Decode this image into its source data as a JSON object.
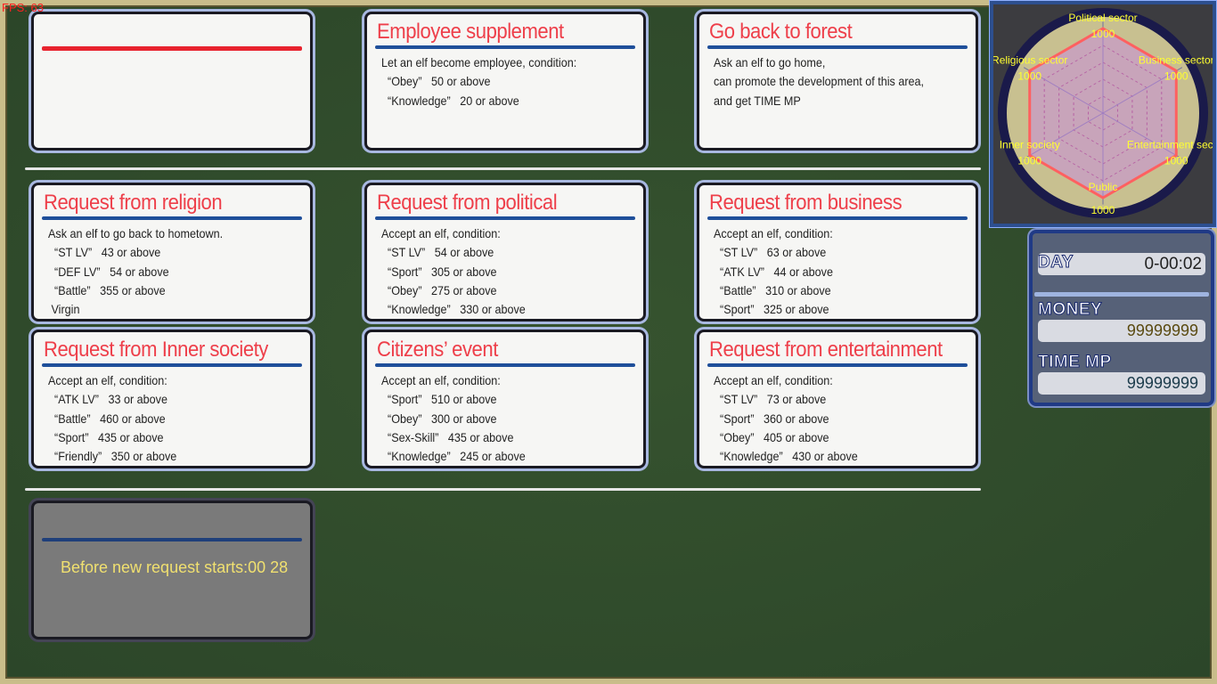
{
  "fps": "FPS: 63",
  "cards": [
    {
      "title": "",
      "rule_color": "#e8232e",
      "lines": []
    },
    {
      "title": "Employee supplement",
      "lines": [
        "Let an elf become employee, condition:",
        "  “Obey”   50 or above",
        "  “Knowledge”   20 or above"
      ]
    },
    {
      "title": "Go back to forest",
      "lines": [
        "Ask an elf to go home,",
        "can promote the development of this area,",
        "and get TIME MP"
      ]
    },
    {
      "title": "Request from religion",
      "lines": [
        "Ask an elf to go back to hometown.",
        "  “ST LV”   43 or above",
        "  “DEF LV”   54 or above",
        "  “Battle”   355 or above",
        " Virgin"
      ]
    },
    {
      "title": "Request from political",
      "lines": [
        "Accept an elf, condition:",
        "  “ST LV”   54 or above",
        "  “Sport”   305 or above",
        "  “Obey”   275 or above",
        "  “Knowledge”   330 or above"
      ]
    },
    {
      "title": "Request from business",
      "lines": [
        "Accept an elf, condition:",
        "  “ST LV”   63 or above",
        "  “ATK LV”   44 or above",
        "  “Battle”   310 or above",
        "  “Sport”   325 or above"
      ]
    },
    {
      "title": "Request from Inner society",
      "lines": [
        "Accept an elf, condition:",
        "  “ATK LV”   33 or above",
        "  “Battle”   460 or above",
        "  “Sport”   435 or above",
        "  “Friendly”   350 or above"
      ]
    },
    {
      "title": "Citizens’   event",
      "lines": [
        "Accept an elf, condition:",
        "  “Sport”   510 or above",
        "  “Obey”   300 or above",
        "  “Sex-Skill”   435 or above",
        "  “Knowledge”   245 or above"
      ]
    },
    {
      "title": "Request from entertainment",
      "lines": [
        "Accept an elf, condition:",
        "  “ST LV”   73 or above",
        "  “Sport”   360 or above",
        "  “Obey”   405 or above",
        "  “Knowledge”   430 or above"
      ]
    }
  ],
  "timer": {
    "text": "Before new request starts:00 28"
  },
  "radar": {
    "axes": [
      {
        "label": "Political sector",
        "value": 1000
      },
      {
        "label": "Business sector",
        "value": 1000
      },
      {
        "label": "Entertainment sector",
        "value": 1000
      },
      {
        "label": "Public",
        "value": 1000
      },
      {
        "label": "Inner society",
        "value": 1000
      },
      {
        "label": "Religious sector",
        "value": 1000
      }
    ],
    "max": 1000,
    "line_color": "#ff6060",
    "label_color": "#ffff30"
  },
  "stats": {
    "day_label": "DAY",
    "day_value": "0-00:02",
    "money_label": "MONEY",
    "money_value": "99999999",
    "timemp_label": "TIME MP",
    "timemp_value": "99999999"
  }
}
